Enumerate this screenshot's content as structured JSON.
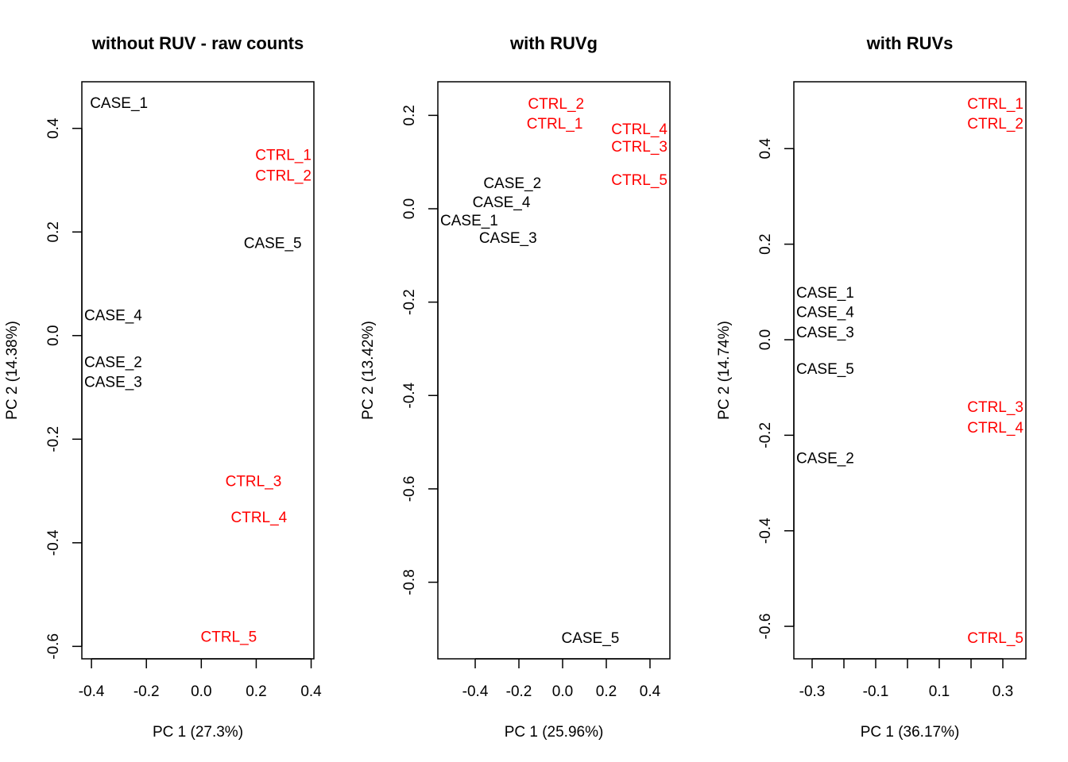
{
  "chart_data": [
    {
      "type": "scatter",
      "title": "without RUV - raw counts",
      "xlabel": "PC 1 (27.3%)",
      "ylabel": "PC 2 (14.38%)",
      "xlim": [
        -0.435,
        0.41
      ],
      "ylim": [
        -0.624,
        0.49
      ],
      "xticks": [
        -0.4,
        -0.2,
        0.0,
        0.2,
        0.4
      ],
      "xtick_labels": [
        "-0.4",
        "-0.2",
        "0.0",
        "0.2",
        "0.4"
      ],
      "yticks": [
        -0.6,
        -0.4,
        -0.2,
        0.0,
        0.2,
        0.4
      ],
      "ytick_labels": [
        "-0.6",
        "-0.4",
        "-0.2",
        "0.0",
        "0.2",
        "0.4"
      ],
      "grid": false,
      "points": [
        {
          "label": "CASE_1",
          "x": -0.3,
          "y": 0.45,
          "group": "case"
        },
        {
          "label": "CTRL_1",
          "x": 0.38,
          "y": 0.35,
          "group": "ctrl"
        },
        {
          "label": "CTRL_2",
          "x": 0.374,
          "y": 0.31,
          "group": "ctrl"
        },
        {
          "label": "CASE_5",
          "x": 0.26,
          "y": 0.18,
          "group": "case"
        },
        {
          "label": "CASE_4",
          "x": -0.4,
          "y": 0.04,
          "group": "case"
        },
        {
          "label": "CASE_2",
          "x": -0.395,
          "y": -0.05,
          "group": "case"
        },
        {
          "label": "CASE_3",
          "x": -0.4,
          "y": -0.052,
          "group": "case"
        },
        {
          "label": "CTRL_3",
          "x": 0.19,
          "y": -0.28,
          "group": "ctrl"
        },
        {
          "label": "CTRL_4",
          "x": 0.21,
          "y": -0.35,
          "group": "ctrl"
        },
        {
          "label": "CTRL_5",
          "x": 0.1,
          "y": -0.58,
          "group": "ctrl"
        }
      ]
    },
    {
      "type": "scatter",
      "title": "with RUVg",
      "xlabel": "PC 1 (25.96%)",
      "ylabel": "PC 2 (13.42%)",
      "xlim": [
        -0.571,
        0.491
      ],
      "ylim": [
        -0.964,
        0.272
      ],
      "xticks": [
        -0.4,
        -0.2,
        0.0,
        0.2,
        0.4
      ],
      "xtick_labels": [
        "-0.4",
        "-0.2",
        "0.0",
        "0.2",
        "0.4"
      ],
      "yticks": [
        -0.8,
        -0.6,
        -0.4,
        -0.2,
        0.0,
        0.2
      ],
      "ytick_labels": [
        "-0.8",
        "-0.6",
        "-0.4",
        "-0.2",
        "0.0",
        "0.2"
      ],
      "grid": false,
      "points": [
        {
          "label": "CTRL_2",
          "x": -0.03,
          "y": 0.226,
          "group": "ctrl"
        },
        {
          "label": "CTRL_1",
          "x": -0.036,
          "y": 0.197,
          "group": "ctrl"
        },
        {
          "label": "CTRL_3",
          "x": 0.37,
          "y": 0.168,
          "group": "ctrl"
        },
        {
          "label": "CTRL_4",
          "x": 0.45,
          "y": 0.172,
          "group": "ctrl"
        },
        {
          "label": "CTRL_5",
          "x": 0.41,
          "y": 0.063,
          "group": "ctrl"
        },
        {
          "label": "CASE_2",
          "x": -0.23,
          "y": 0.056,
          "group": "case"
        },
        {
          "label": "CASE_1",
          "x": -0.53,
          "y": 0.024,
          "group": "case"
        },
        {
          "label": "CASE_4",
          "x": -0.28,
          "y": 0.029,
          "group": "case"
        },
        {
          "label": "CASE_3",
          "x": -0.25,
          "y": 0.0,
          "group": "case"
        },
        {
          "label": "CASE_5",
          "x": 0.127,
          "y": -0.918,
          "group": "case"
        }
      ]
    },
    {
      "type": "scatter",
      "title": "with RUVs",
      "xlabel": "PC 1 (36.17%)",
      "ylabel": "PC 2 (14.74%)",
      "xlim": [
        -0.3575,
        0.3725
      ],
      "ylim": [
        -0.668,
        0.54
      ],
      "xticks": [
        -0.3,
        -0.2,
        -0.1,
        0.0,
        0.1,
        0.2,
        0.3
      ],
      "xtick_labels": [
        "-0.3",
        "",
        "-0.1",
        "",
        "0.1",
        "",
        "0.3"
      ],
      "yticks": [
        -0.6,
        -0.4,
        -0.2,
        0.0,
        0.2,
        0.4
      ],
      "ytick_labels": [
        "-0.6",
        "-0.4",
        "-0.2",
        "0.0",
        "0.2",
        "0.4"
      ],
      "grid": false,
      "points": [
        {
          "label": "CTRL_1",
          "x": 0.3,
          "y": 0.495,
          "group": "ctrl"
        },
        {
          "label": "CTRL_2",
          "x": 0.295,
          "y": 0.487,
          "group": "ctrl"
        },
        {
          "label": "CASE_1",
          "x": -0.33,
          "y": 0.1,
          "group": "case"
        },
        {
          "label": "CASE_4",
          "x": -0.305,
          "y": 0.092,
          "group": "case"
        },
        {
          "label": "CASE_3",
          "x": -0.325,
          "y": 0.07,
          "group": "case"
        },
        {
          "label": "CASE_5",
          "x": -0.32,
          "y": -0.06,
          "group": "case"
        },
        {
          "label": "CTRL_3",
          "x": 0.34,
          "y": -0.14,
          "group": "ctrl"
        },
        {
          "label": "CTRL_4",
          "x": 0.305,
          "y": -0.156,
          "group": "ctrl"
        },
        {
          "label": "CASE_2",
          "x": -0.305,
          "y": -0.247,
          "group": "case"
        },
        {
          "label": "CTRL_5",
          "x": 0.33,
          "y": -0.623,
          "group": "ctrl"
        }
      ]
    }
  ],
  "colors": {
    "case": "#000000",
    "ctrl": "#FF0000"
  }
}
